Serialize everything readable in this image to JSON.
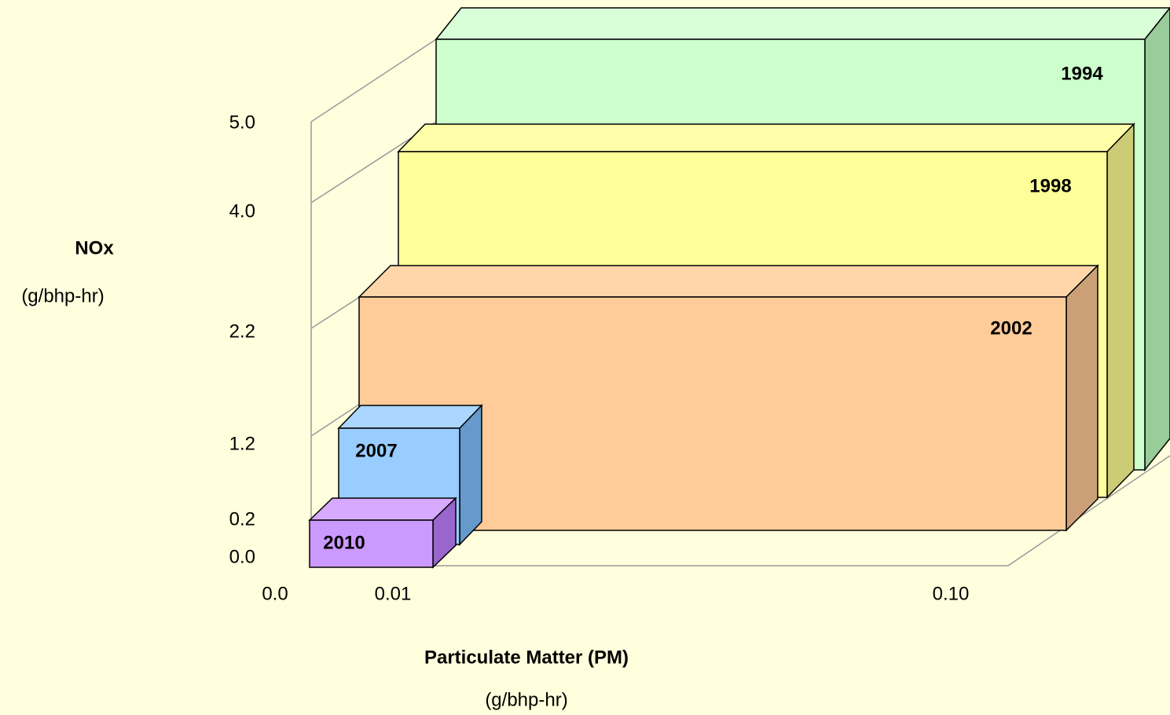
{
  "y_axis": {
    "title": "NOx",
    "unit": "(g/bhp-hr)",
    "ticks": [
      "5.0",
      "4.0",
      "2.2",
      "1.2",
      "0.2",
      "0.0"
    ]
  },
  "x_axis": {
    "title": "Particulate Matter (PM)",
    "unit": "(g/bhp-hr)",
    "ticks": [
      "0.0",
      "0.01",
      "0.10"
    ]
  },
  "boxes": [
    {
      "label": "1994"
    },
    {
      "label": "1998"
    },
    {
      "label": "2002"
    },
    {
      "label": "2007"
    },
    {
      "label": "2010"
    }
  ]
}
